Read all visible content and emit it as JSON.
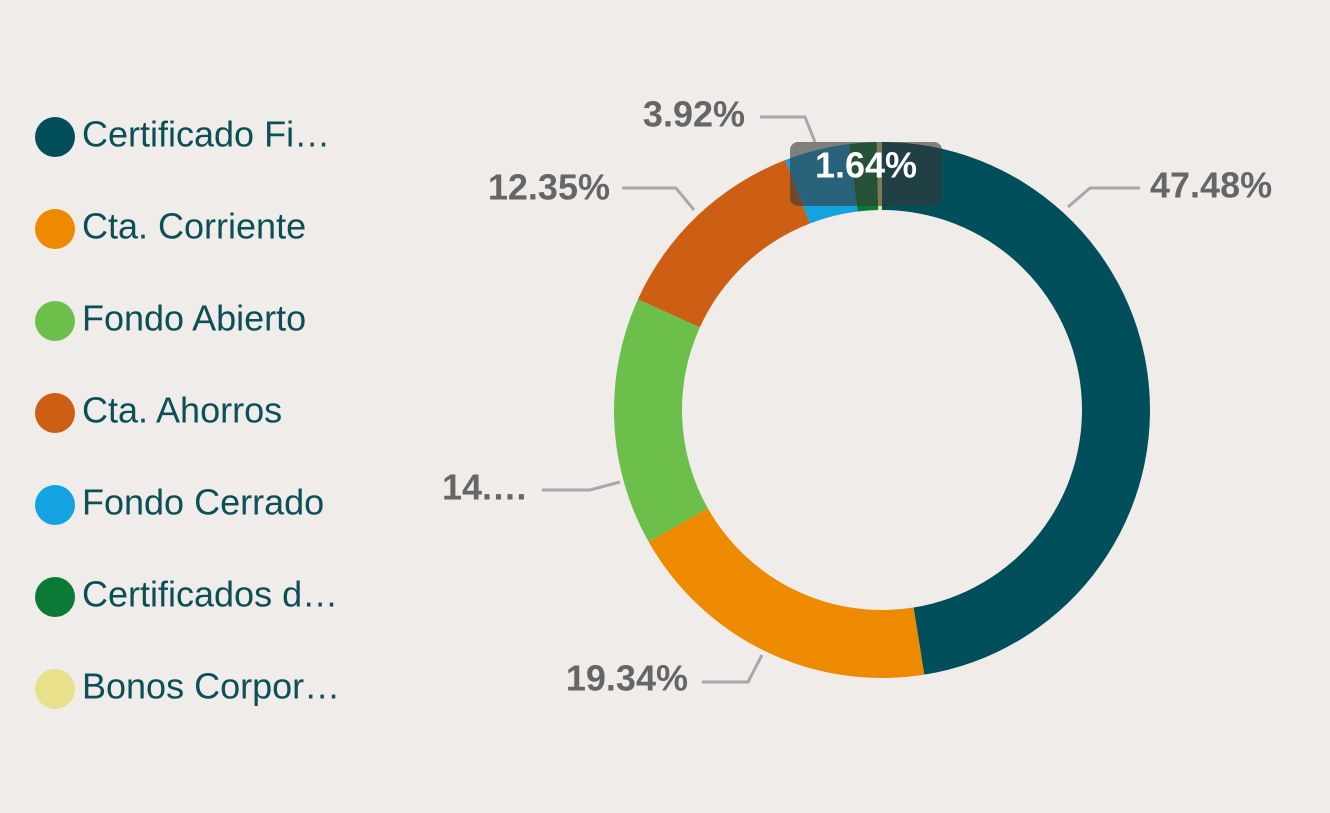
{
  "chart_data": {
    "type": "donut",
    "categories": [
      "Certificado Fi…",
      "Cta. Corriente",
      "Fondo Abierto",
      "Cta. Ahorros",
      "Fondo Cerrado",
      "Certificados d…",
      "Bonos Corpor…"
    ],
    "values": [
      47.48,
      19.34,
      14.96,
      12.35,
      3.92,
      1.64,
      0.31
    ],
    "value_labels": [
      "47.48%",
      "19.34%",
      "14.…",
      "12.35%",
      "3.92%",
      "1.64%",
      null
    ],
    "colors": [
      "#004f5a",
      "#ee8a00",
      "#6dbf4b",
      "#cc5f14",
      "#12a3e0",
      "#0a7a36",
      "#e8e08a"
    ],
    "legend": "left"
  }
}
